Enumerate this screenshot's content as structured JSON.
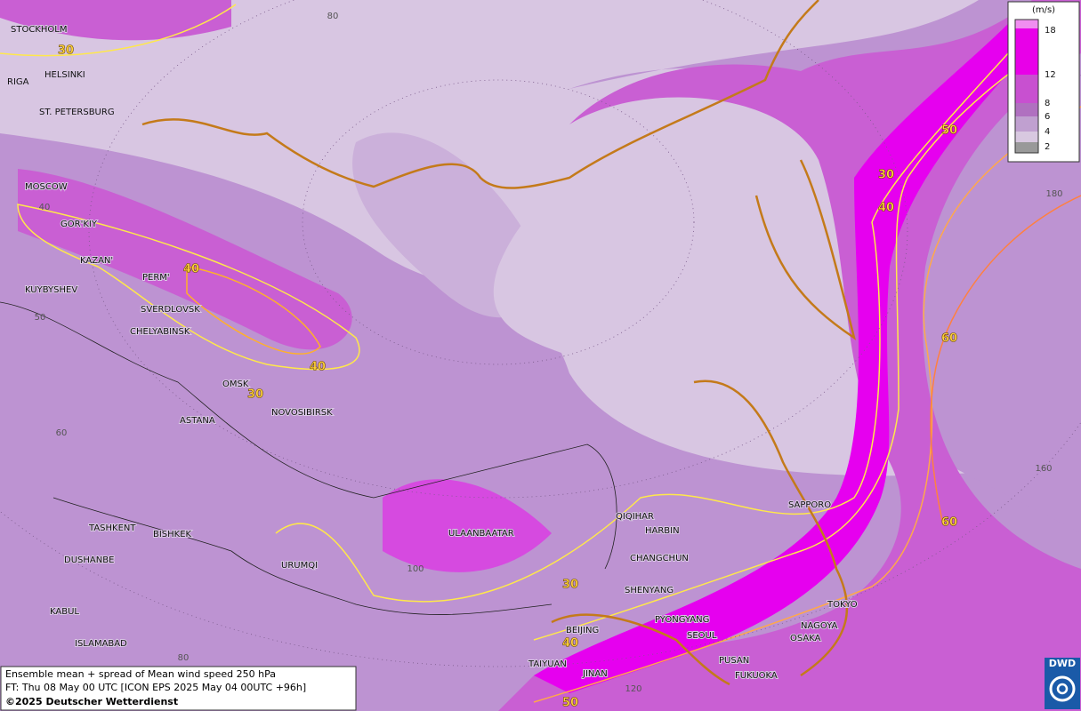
{
  "map": {
    "cities": [
      "STOCKHOLM",
      "HELSINKI",
      "RIGA",
      "ST. PETERSBURG",
      "MOSCOW",
      "GOR'KIY",
      "KAZAN'",
      "PERM'",
      "KUYBYSHEV",
      "SVERDLOVSK",
      "CHELYABINSK",
      "OMSK",
      "NOVOSIBIRSK",
      "ASTANA",
      "TASHKENT",
      "BISHKEK",
      "DUSHANBE",
      "URUMQI",
      "KABUL",
      "ISLAMABAD",
      "ULAANBAATAR",
      "QIQIHAR",
      "HARBIN",
      "CHANGCHUN",
      "SHENYANG",
      "PYONGYANG",
      "BEIJING",
      "SEOUL",
      "TAIYUAN",
      "JINAN",
      "PUSAN",
      "FUKUOKA",
      "NAGOYA",
      "OSAKA",
      "TOKYO",
      "SAPPORO"
    ],
    "contour_labels": [
      30,
      40,
      40,
      30,
      50,
      30,
      40,
      60,
      60,
      30,
      40,
      50
    ],
    "grid_labels": [
      80,
      180,
      40,
      50,
      60,
      100,
      160,
      80,
      120
    ]
  },
  "legend": {
    "unit": "(m/s)",
    "levels": [
      18,
      12,
      8,
      6,
      4,
      2
    ]
  },
  "caption": {
    "line1": "Ensemble mean + spread of Mean wind speed 250 hPa",
    "line2": "FT: Thu 08 May 00 UTC [ICON EPS 2025 May 04 00UTC +96h]",
    "line3": "©2025 Deutscher Wetterdienst"
  },
  "logo": "DWD"
}
